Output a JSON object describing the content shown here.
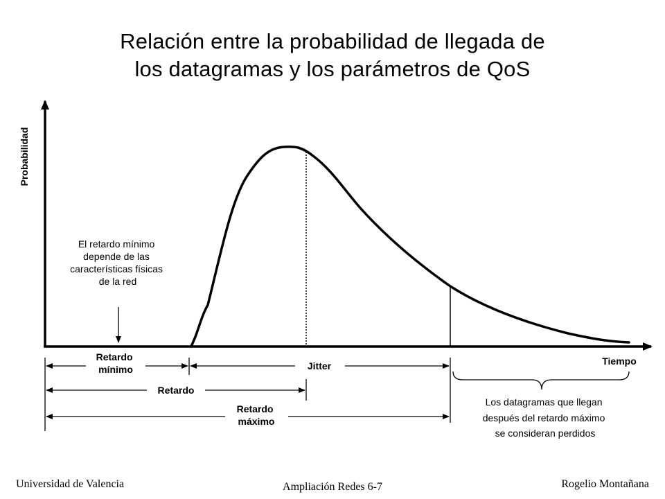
{
  "title": {
    "line1": "Relación entre la probabilidad de llegada de",
    "line2": "los datagramas y los parámetros de QoS"
  },
  "axes": {
    "y_label": "Probabilidad",
    "x_label": "Tiempo"
  },
  "annotations": {
    "min_delay_note": [
      "El retardo mínimo",
      "depende de las",
      "características físicas",
      "de la red"
    ],
    "lost_note": [
      "Los datagramas que llegan",
      "después del retardo máximo",
      "se  consideran perdidos"
    ]
  },
  "intervals": {
    "min_delay": [
      "Retardo",
      "mínimo"
    ],
    "jitter": "Jitter",
    "delay": "Retardo",
    "max_delay": [
      "Retardo",
      "máximo"
    ]
  },
  "footer": {
    "left": "Universidad de Valencia",
    "center": "Ampliación Redes 6-7",
    "right": "Rogelio Montañana"
  }
}
